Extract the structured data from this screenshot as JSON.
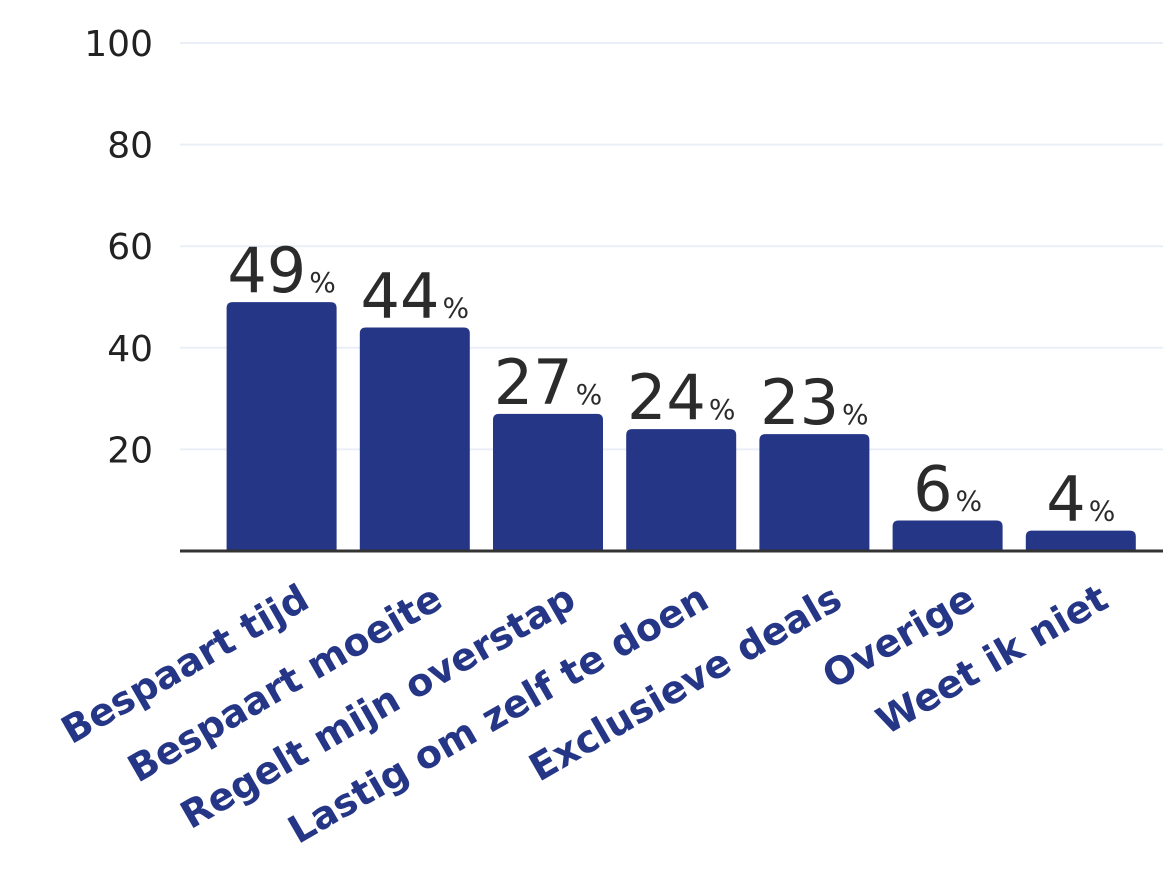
{
  "chart_data": {
    "type": "bar",
    "categories": [
      "Bespaart tijd",
      "Bespaart moeite",
      "Regelt mijn overstap",
      "Lastig om zelf te doen",
      "Exclusieve deals",
      "Overige",
      "Weet ik niet"
    ],
    "values": [
      49,
      44,
      27,
      24,
      23,
      6,
      4
    ],
    "value_labels": [
      "49",
      "44",
      "27",
      "24",
      "23",
      "6",
      "4"
    ],
    "value_unit": "%",
    "ylim": [
      0,
      100
    ],
    "yticks": [
      20,
      40,
      60,
      80,
      100
    ],
    "ytick_labels": [
      "20",
      "40",
      "60",
      "80",
      "100"
    ],
    "grid": true,
    "title": "",
    "xlabel": "",
    "ylabel": "",
    "colors": {
      "bar": "#263686",
      "category_label": "#263686",
      "grid": "#eaeff7",
      "axis": "#333333",
      "text": "#2b2b2b"
    }
  }
}
